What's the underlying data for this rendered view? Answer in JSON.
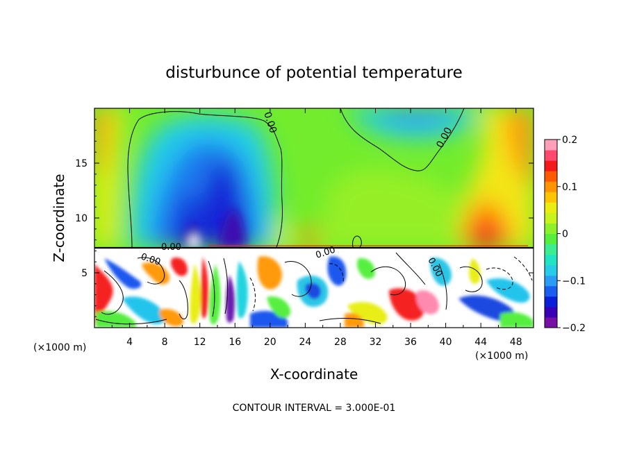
{
  "chart_data": {
    "type": "heatmap",
    "title": "disturbunce of potential temperature",
    "xlabel": "X-coordinate",
    "ylabel": "Z-coordinate",
    "x_unit_left": "(×1000 m)",
    "x_unit_right": "(×1000 m)",
    "x_ticks": [
      4,
      8,
      12,
      16,
      20,
      24,
      28,
      32,
      36,
      40,
      44,
      48
    ],
    "y_ticks": [
      5,
      10,
      15
    ],
    "xlim": [
      0,
      50
    ],
    "ylim": [
      0,
      20
    ],
    "footer": "CONTOUR INTERVAL = 3.000E-01",
    "colorbar": {
      "range": [
        -0.2,
        0.2
      ],
      "tick_values": [
        0.2,
        0.1,
        0,
        -0.1,
        -0.2
      ],
      "tick_labels": [
        "0.2",
        "0.1",
        "0",
        "−0.1",
        "−0.2"
      ],
      "colors": [
        "#7a0fa6",
        "#3a00b5",
        "#0a1fd8",
        "#1a5ef0",
        "#2b9cf5",
        "#26cce8",
        "#22e4c4",
        "#3cec90",
        "#56ef40",
        "#8cf02a",
        "#c7f41c",
        "#eaee10",
        "#ffc400",
        "#ff9400",
        "#ff5a00",
        "#f51a1a",
        "#ff4a6e",
        "#ffa0b8"
      ]
    },
    "contour_labels": [
      "0.00",
      "0.00",
      "0.00",
      "0.00",
      "0.00",
      "0.00"
    ],
    "inversion_height": 7.3
  }
}
